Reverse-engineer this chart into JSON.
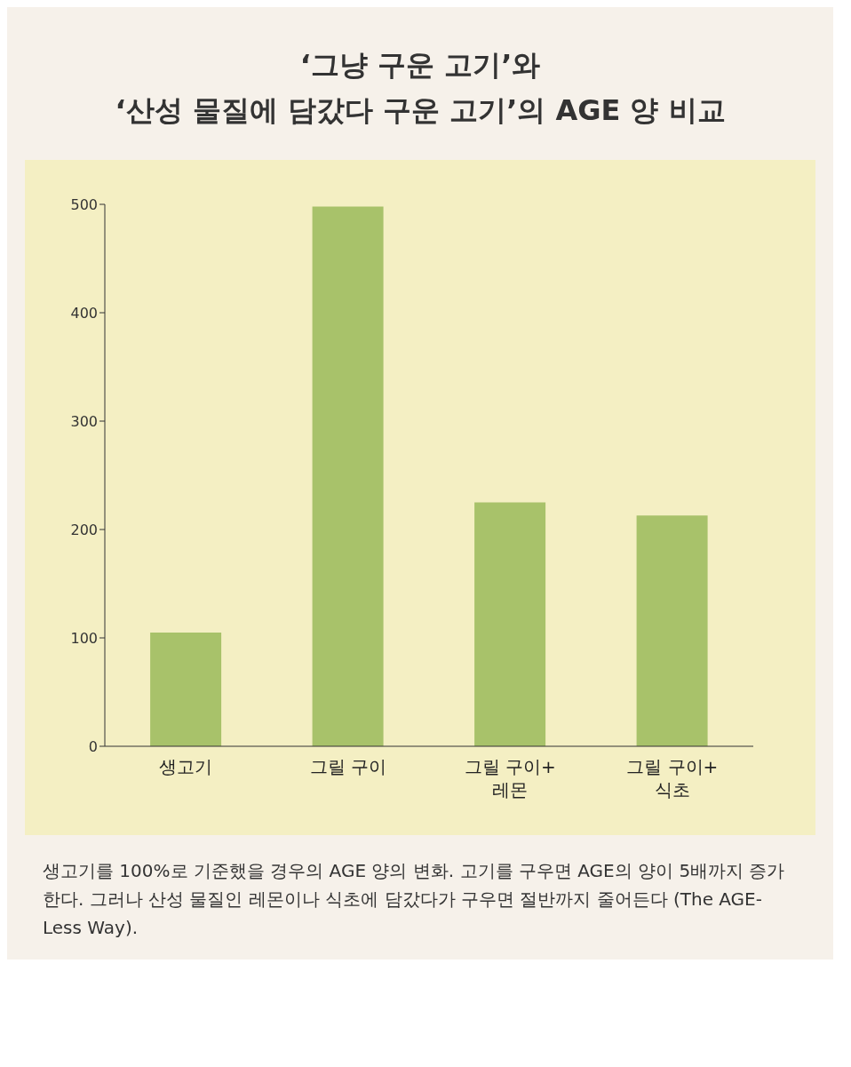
{
  "chart_data": {
    "type": "bar",
    "title": "‘그냥 구운 고기’와\n‘산성 물질에 담갔다 구운 고기’의 AGE 양 비교",
    "categories": [
      "생고기",
      "그릴 구이",
      "그릴 구이+\n레몬",
      "그릴 구이+\n식초"
    ],
    "values": [
      105,
      498,
      225,
      213
    ],
    "color": "#a8c26a",
    "ylim": [
      0,
      500
    ],
    "yticks": [
      0,
      100,
      200,
      300,
      400,
      500
    ],
    "grid": false,
    "legend": false,
    "annotations": [
      "생고기를 100%로 기준했을 경우의 AGE 양의 변화. 고기를 구우면 AGE의 양이 5배까지 증가한다. 그러나 산성 물질인 레몬이나 식초에 담갔다가 구우면 절반까지 줄어든다 (The AGE-Less Way)."
    ]
  }
}
